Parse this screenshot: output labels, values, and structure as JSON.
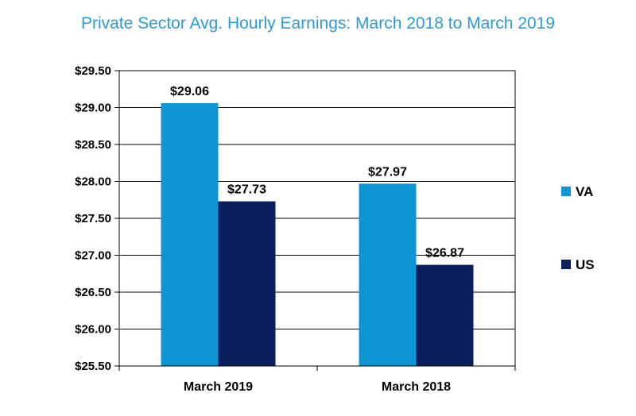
{
  "chart_data": {
    "type": "bar",
    "title": "Private Sector Avg. Hourly Earnings:  March 2018 to March 2019",
    "xlabel": "",
    "ylabel": "",
    "categories": [
      "March 2019",
      "March 2018"
    ],
    "series": [
      {
        "name": "VA",
        "values": [
          29.06,
          27.97
        ],
        "labels": [
          "$29.06",
          "$27.97"
        ],
        "color": "#0e96d4"
      },
      {
        "name": "US",
        "values": [
          27.73,
          26.87
        ],
        "labels": [
          "$27.73",
          "$26.87"
        ],
        "color": "#0a1f5c"
      }
    ],
    "ylim": [
      25.5,
      29.5
    ],
    "yticks": [
      25.5,
      26.0,
      26.5,
      27.0,
      27.5,
      28.0,
      28.5,
      29.0,
      29.5
    ],
    "ytick_labels": [
      "$25.50",
      "$26.00",
      "$26.50",
      "$27.00",
      "$27.50",
      "$28.00",
      "$28.50",
      "$29.00",
      "$29.50"
    ],
    "grid": true,
    "legend_position": "right"
  }
}
